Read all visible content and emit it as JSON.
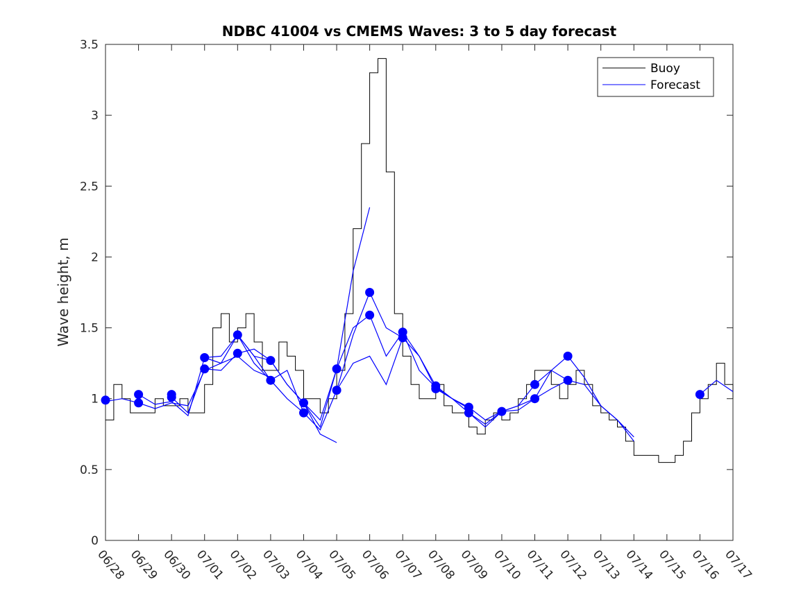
{
  "chart_data": {
    "type": "line",
    "title": "NDBC 41004 vs CMEMS Waves: 3 to 5 day forecast",
    "xlabel": "",
    "ylabel": "Wave height, m",
    "x_is_date": true,
    "xlim": [
      "06/28 00:00",
      "07/17 00:00"
    ],
    "xticks": [
      "06/28",
      "06/29",
      "06/30",
      "07/01",
      "07/02",
      "07/03",
      "07/04",
      "07/05",
      "07/06",
      "07/07",
      "07/08",
      "07/09",
      "07/10",
      "07/11",
      "07/12",
      "07/13",
      "07/14",
      "07/15",
      "07/16",
      "07/17"
    ],
    "ylim": [
      0,
      3.5
    ],
    "yticks": [
      "0",
      "0.5",
      "1",
      "1.5",
      "2",
      "2.5",
      "3",
      "3.5"
    ],
    "grid": false,
    "legend": {
      "placement": "top-right",
      "entries": [
        {
          "name": "Buoy",
          "color": "#000000"
        },
        {
          "name": "Forecast",
          "color": "#0000ff"
        }
      ]
    },
    "colors": {
      "buoy": "#000000",
      "forecast": "#0000ff"
    },
    "buoy": {
      "name": "Buoy",
      "x": [
        "06/28 00:00",
        "06/28 06:00",
        "06/28 12:00",
        "06/28 18:00",
        "06/29 00:00",
        "06/29 06:00",
        "06/29 12:00",
        "06/29 18:00",
        "06/30 00:00",
        "06/30 06:00",
        "06/30 12:00",
        "06/30 18:00",
        "07/01 00:00",
        "07/01 06:00",
        "07/01 12:00",
        "07/01 18:00",
        "07/02 00:00",
        "07/02 06:00",
        "07/02 12:00",
        "07/02 18:00",
        "07/03 00:00",
        "07/03 06:00",
        "07/03 12:00",
        "07/03 18:00",
        "07/04 00:00",
        "07/04 06:00",
        "07/04 12:00",
        "07/04 18:00",
        "07/05 00:00",
        "07/05 06:00",
        "07/05 12:00",
        "07/05 18:00",
        "07/06 00:00",
        "07/06 06:00",
        "07/06 12:00",
        "07/06 18:00",
        "07/07 00:00",
        "07/07 06:00",
        "07/07 12:00",
        "07/07 18:00",
        "07/08 00:00",
        "07/08 06:00",
        "07/08 12:00",
        "07/08 18:00",
        "07/09 00:00",
        "07/09 06:00",
        "07/09 12:00",
        "07/09 18:00",
        "07/10 00:00",
        "07/10 06:00",
        "07/10 12:00",
        "07/10 18:00",
        "07/11 00:00",
        "07/11 06:00",
        "07/11 12:00",
        "07/11 18:00",
        "07/12 00:00",
        "07/12 06:00",
        "07/12 12:00",
        "07/12 18:00",
        "07/13 00:00",
        "07/13 06:00",
        "07/13 12:00",
        "07/13 18:00",
        "07/14 00:00",
        "07/14 06:00",
        "07/14 12:00",
        "07/14 18:00",
        "07/15 00:00",
        "07/15 06:00",
        "07/15 12:00",
        "07/15 18:00",
        "07/16 00:00",
        "07/16 06:00",
        "07/16 12:00",
        "07/16 18:00",
        "07/17 00:00"
      ],
      "values": [
        0.85,
        1.1,
        1.0,
        0.9,
        0.9,
        0.9,
        1.0,
        0.95,
        0.95,
        1.0,
        0.9,
        0.9,
        1.1,
        1.5,
        1.6,
        1.4,
        1.5,
        1.6,
        1.4,
        1.2,
        1.2,
        1.4,
        1.3,
        1.2,
        1.0,
        1.0,
        0.9,
        1.0,
        1.2,
        1.6,
        2.2,
        2.8,
        3.3,
        3.4,
        2.6,
        1.6,
        1.3,
        1.1,
        1.0,
        1.0,
        1.1,
        0.95,
        0.9,
        0.9,
        0.8,
        0.75,
        0.85,
        0.9,
        0.85,
        0.9,
        1.0,
        1.1,
        1.2,
        1.2,
        1.1,
        1.0,
        1.1,
        1.2,
        1.1,
        0.95,
        0.9,
        0.85,
        0.8,
        0.7,
        0.6,
        0.6,
        0.6,
        0.55,
        0.55,
        0.6,
        0.7,
        0.9,
        1.0,
        1.1,
        1.25,
        1.1,
        1.0
      ]
    },
    "forecast_series": [
      {
        "x": [
          "06/28 00:00",
          "06/28 12:00",
          "06/29 00:00",
          "06/29 12:00",
          "06/30 00:00",
          "06/30 12:00",
          "07/01 00:00",
          "07/01 12:00",
          "07/02 00:00",
          "07/02 12:00",
          "07/03 00:00"
        ],
        "values": [
          0.98,
          1.0,
          0.97,
          0.93,
          0.97,
          0.95,
          1.2,
          1.25,
          1.3,
          1.2,
          1.15
        ]
      },
      {
        "x": [
          "06/29 00:00",
          "06/29 12:00",
          "06/30 00:00",
          "06/30 12:00",
          "07/01 00:00",
          "07/01 12:00",
          "07/02 00:00",
          "07/02 12:00",
          "07/03 00:00",
          "07/03 12:00",
          "07/04 00:00"
        ],
        "values": [
          1.03,
          0.96,
          0.98,
          0.88,
          1.29,
          1.3,
          1.45,
          1.25,
          1.13,
          1.2,
          0.9
        ]
      },
      {
        "x": [
          "06/30 00:00",
          "06/30 12:00",
          "07/01 00:00",
          "07/01 12:00",
          "07/02 00:00",
          "07/02 12:00",
          "07/03 00:00",
          "07/03 12:00",
          "07/04 00:00",
          "07/04 12:00",
          "07/05 00:00"
        ],
        "values": [
          1.01,
          0.9,
          1.21,
          1.2,
          1.32,
          1.35,
          1.27,
          1.1,
          0.97,
          0.75,
          0.69
        ]
      },
      {
        "x": [
          "07/01 00:00",
          "07/01 12:00",
          "07/02 00:00",
          "07/02 12:00",
          "07/03 00:00",
          "07/03 12:00",
          "07/04 00:00",
          "07/04 12:00",
          "07/05 00:00",
          "07/05 12:00",
          "07/06 00:00"
        ],
        "values": [
          1.29,
          1.25,
          1.45,
          1.3,
          1.27,
          1.1,
          0.97,
          0.8,
          1.21,
          1.9,
          2.35
        ]
      },
      {
        "x": [
          "07/02 00:00",
          "07/02 12:00",
          "07/03 00:00",
          "07/03 12:00",
          "07/04 00:00",
          "07/04 12:00",
          "07/05 00:00",
          "07/05 12:00",
          "07/06 00:00",
          "07/06 12:00",
          "07/07 00:00"
        ],
        "values": [
          1.45,
          1.3,
          1.13,
          1.0,
          0.9,
          0.78,
          1.06,
          1.45,
          1.75,
          1.5,
          1.43
        ]
      },
      {
        "x": [
          "07/04 00:00",
          "07/04 12:00",
          "07/05 00:00",
          "07/05 12:00",
          "07/06 00:00",
          "07/06 12:00",
          "07/07 00:00",
          "07/07 12:00",
          "07/08 00:00",
          "07/08 12:00",
          "07/09 00:00"
        ],
        "values": [
          0.97,
          0.85,
          1.21,
          1.5,
          1.59,
          1.3,
          1.47,
          1.2,
          1.08,
          1.0,
          0.93
        ]
      },
      {
        "x": [
          "07/05 00:00",
          "07/05 12:00",
          "07/06 00:00",
          "07/06 12:00",
          "07/07 00:00",
          "07/07 12:00",
          "07/08 00:00",
          "07/08 12:00",
          "07/09 00:00",
          "07/09 12:00",
          "07/10 00:00"
        ],
        "values": [
          1.06,
          1.25,
          1.3,
          1.1,
          1.43,
          1.3,
          1.09,
          1.0,
          0.9,
          0.82,
          0.91
        ]
      },
      {
        "x": [
          "07/07 00:00",
          "07/07 12:00",
          "07/08 00:00",
          "07/08 12:00",
          "07/09 00:00",
          "07/09 12:00",
          "07/10 00:00",
          "07/10 12:00",
          "07/11 00:00",
          "07/11 12:00",
          "07/12 00:00"
        ],
        "values": [
          1.47,
          1.3,
          1.07,
          1.0,
          0.94,
          0.85,
          0.91,
          0.95,
          1.0,
          1.2,
          1.13
        ]
      },
      {
        "x": [
          "07/09 00:00",
          "07/09 12:00",
          "07/10 00:00",
          "07/10 12:00",
          "07/11 00:00",
          "07/11 12:00",
          "07/12 00:00",
          "07/12 12:00",
          "07/13 00:00",
          "07/13 12:00",
          "07/14 00:00"
        ],
        "values": [
          0.9,
          0.8,
          0.91,
          0.95,
          1.1,
          1.2,
          1.3,
          1.15,
          0.95,
          0.85,
          0.73
        ]
      },
      {
        "x": [
          "07/10 00:00",
          "07/10 12:00",
          "07/11 00:00",
          "07/11 12:00",
          "07/12 00:00",
          "07/12 12:00",
          "07/13 00:00",
          "07/13 12:00",
          "07/14 00:00"
        ],
        "values": [
          0.91,
          0.92,
          1.0,
          1.07,
          1.13,
          1.1,
          0.95,
          0.85,
          0.7
        ]
      },
      {
        "x": [
          "07/16 00:00",
          "07/16 12:00",
          "07/17 00:00"
        ],
        "values": [
          1.03,
          1.13,
          1.05
        ]
      }
    ],
    "forecast_markers": {
      "x": [
        "06/28 00:00",
        "06/29 00:00",
        "06/29 00:00",
        "06/30 00:00",
        "06/30 00:00",
        "07/01 00:00",
        "07/01 00:00",
        "07/02 00:00",
        "07/02 00:00",
        "07/03 00:00",
        "07/03 00:00",
        "07/04 00:00",
        "07/04 00:00",
        "07/05 00:00",
        "07/05 00:00",
        "07/06 00:00",
        "07/06 00:00",
        "07/07 00:00",
        "07/07 00:00",
        "07/08 00:00",
        "07/08 00:00",
        "07/09 00:00",
        "07/09 00:00",
        "07/10 00:00",
        "07/11 00:00",
        "07/11 00:00",
        "07/12 00:00",
        "07/12 00:00",
        "07/16 00:00"
      ],
      "values": [
        0.99,
        1.03,
        0.97,
        1.03,
        1.01,
        1.29,
        1.21,
        1.45,
        1.32,
        1.27,
        1.13,
        0.97,
        0.9,
        1.21,
        1.06,
        1.75,
        1.59,
        1.47,
        1.43,
        1.09,
        1.07,
        0.94,
        0.9,
        0.91,
        1.1,
        1.0,
        1.3,
        1.13,
        1.03
      ]
    }
  }
}
